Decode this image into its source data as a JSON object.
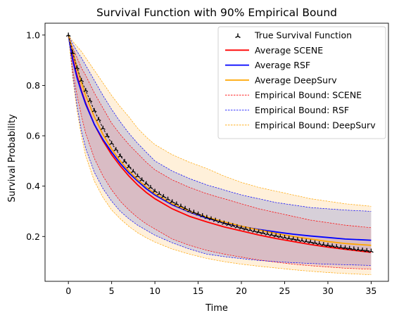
{
  "chart_data": {
    "type": "line",
    "title": "Survival Function with 90% Empirical Bound",
    "xlabel": "Time",
    "ylabel": "Survival Probability",
    "xlim": [
      -2.7,
      37.0
    ],
    "ylim": [
      0.022,
      1.047
    ],
    "xticks": [
      0,
      5,
      10,
      15,
      20,
      25,
      30,
      35
    ],
    "yticks": [
      0.2,
      0.4,
      0.6,
      0.8,
      1.0
    ],
    "ytick_labels": [
      "0.2",
      "0.4",
      "0.6",
      "0.8",
      "1.0"
    ],
    "legend_position": "upper right",
    "grid": false,
    "x": [
      0,
      0.5,
      1,
      1.5,
      2,
      3,
      4,
      5,
      6,
      7,
      8,
      9,
      10,
      12,
      14,
      16,
      18,
      20,
      22,
      24,
      26,
      28,
      30,
      32,
      35
    ],
    "series": [
      {
        "name": "True Survival Function",
        "style": "marker",
        "color": "#000000",
        "values": [
          1.0,
          0.93,
          0.87,
          0.82,
          0.78,
          0.7,
          0.63,
          0.57,
          0.52,
          0.477,
          0.44,
          0.41,
          0.38,
          0.338,
          0.303,
          0.276,
          0.253,
          0.234,
          0.218,
          0.203,
          0.19,
          0.178,
          0.165,
          0.155,
          0.142
        ]
      },
      {
        "name": "Average SCENE",
        "style": "solid",
        "color": "#ff0000",
        "values": [
          1.0,
          0.91,
          0.84,
          0.78,
          0.73,
          0.645,
          0.58,
          0.525,
          0.48,
          0.44,
          0.405,
          0.375,
          0.35,
          0.31,
          0.28,
          0.258,
          0.238,
          0.222,
          0.206,
          0.192,
          0.18,
          0.168,
          0.158,
          0.149,
          0.137
        ]
      },
      {
        "name": "Average RSF",
        "style": "solid",
        "color": "#0000ff",
        "values": [
          1.0,
          0.9,
          0.83,
          0.775,
          0.725,
          0.645,
          0.585,
          0.535,
          0.49,
          0.452,
          0.42,
          0.39,
          0.365,
          0.326,
          0.297,
          0.273,
          0.255,
          0.24,
          0.228,
          0.218,
          0.209,
          0.202,
          0.196,
          0.19,
          0.185
        ]
      },
      {
        "name": "Average DeepSurv",
        "style": "solid",
        "color": "#ffa500",
        "values": [
          1.0,
          0.935,
          0.87,
          0.81,
          0.76,
          0.675,
          0.605,
          0.547,
          0.5,
          0.46,
          0.426,
          0.397,
          0.37,
          0.33,
          0.3,
          0.277,
          0.258,
          0.241,
          0.226,
          0.212,
          0.2,
          0.19,
          0.18,
          0.172,
          0.165
        ]
      },
      {
        "name": "Empirical Bound: SCENE",
        "style": "dashed",
        "color": "#ff0000",
        "fill": "#dc9ea6",
        "upper": [
          1.0,
          0.95,
          0.91,
          0.87,
          0.84,
          0.77,
          0.71,
          0.65,
          0.605,
          0.565,
          0.53,
          0.495,
          0.465,
          0.425,
          0.395,
          0.37,
          0.35,
          0.33,
          0.31,
          0.295,
          0.28,
          0.265,
          0.255,
          0.245,
          0.235
        ],
        "lower": [
          1.0,
          0.86,
          0.76,
          0.68,
          0.61,
          0.51,
          0.44,
          0.385,
          0.34,
          0.305,
          0.275,
          0.25,
          0.23,
          0.19,
          0.165,
          0.145,
          0.13,
          0.118,
          0.107,
          0.098,
          0.09,
          0.084,
          0.079,
          0.074,
          0.07
        ]
      },
      {
        "name": "Empirical Bound: RSF",
        "style": "dashed",
        "color": "#0000ff",
        "fill": "#9aa0d6",
        "upper": [
          1.0,
          0.965,
          0.935,
          0.91,
          0.88,
          0.82,
          0.76,
          0.705,
          0.655,
          0.61,
          0.57,
          0.535,
          0.5,
          0.46,
          0.43,
          0.405,
          0.385,
          0.365,
          0.35,
          0.335,
          0.325,
          0.315,
          0.31,
          0.305,
          0.3
        ],
        "lower": [
          1.0,
          0.84,
          0.72,
          0.62,
          0.55,
          0.455,
          0.39,
          0.34,
          0.3,
          0.27,
          0.245,
          0.225,
          0.205,
          0.175,
          0.15,
          0.13,
          0.12,
          0.112,
          0.105,
          0.1,
          0.096,
          0.093,
          0.09,
          0.088,
          0.085
        ]
      },
      {
        "name": "Empirical Bound: DeepSurv",
        "style": "dashed",
        "color": "#ffa500",
        "fill": "#ffd9a3",
        "upper": [
          1.0,
          0.975,
          0.955,
          0.935,
          0.91,
          0.86,
          0.81,
          0.76,
          0.715,
          0.675,
          0.63,
          0.595,
          0.565,
          0.525,
          0.495,
          0.47,
          0.44,
          0.415,
          0.395,
          0.38,
          0.365,
          0.35,
          0.34,
          0.33,
          0.32
        ],
        "lower": [
          1.0,
          0.83,
          0.7,
          0.6,
          0.52,
          0.42,
          0.355,
          0.305,
          0.27,
          0.24,
          0.215,
          0.195,
          0.178,
          0.15,
          0.13,
          0.113,
          0.1,
          0.09,
          0.082,
          0.075,
          0.068,
          0.062,
          0.057,
          0.053,
          0.048
        ]
      }
    ]
  }
}
